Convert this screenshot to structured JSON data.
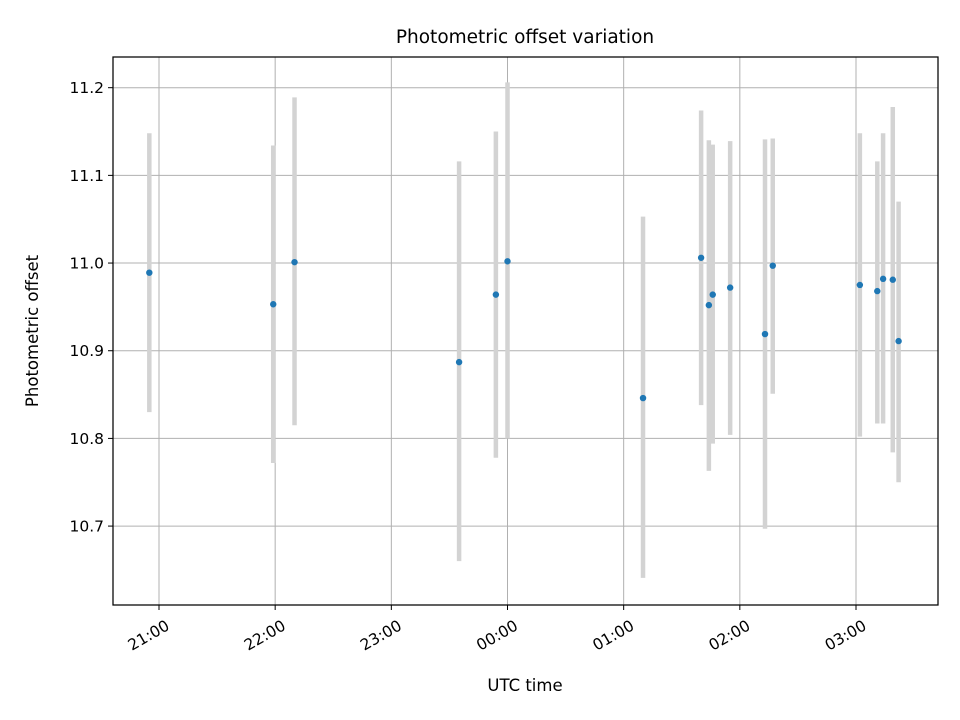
{
  "chart_data": {
    "type": "scatter",
    "title": "Photometric offset variation",
    "xlabel": "UTC time",
    "ylabel": "Photometric offset",
    "x_tick_labels": [
      "21:00",
      "22:00",
      "23:00",
      "00:00",
      "01:00",
      "02:00",
      "03:00"
    ],
    "y_tick_labels": [
      "10.7",
      "10.8",
      "10.9",
      "11.0",
      "11.1",
      "11.2"
    ],
    "ylim": [
      10.61,
      11.235
    ],
    "grid": true,
    "legend": "none",
    "colors": {
      "point": "#1f77b4",
      "errorbar": "#d3d3d3",
      "grid": "#b0b0b0"
    },
    "points": [
      {
        "time": "20:55",
        "y": 10.989,
        "ylow": 10.83,
        "yhigh": 11.148
      },
      {
        "time": "21:59",
        "y": 10.953,
        "ylow": 10.772,
        "yhigh": 11.134
      },
      {
        "time": "22:10",
        "y": 11.001,
        "ylow": 10.815,
        "yhigh": 11.189
      },
      {
        "time": "23:35",
        "y": 10.887,
        "ylow": 10.66,
        "yhigh": 11.116
      },
      {
        "time": "23:54",
        "y": 10.964,
        "ylow": 10.778,
        "yhigh": 11.15
      },
      {
        "time": "00:00",
        "y": 11.002,
        "ylow": 10.8,
        "yhigh": 11.206
      },
      {
        "time": "01:10",
        "y": 10.846,
        "ylow": 10.641,
        "yhigh": 11.053
      },
      {
        "time": "01:40",
        "y": 11.006,
        "ylow": 10.838,
        "yhigh": 11.174
      },
      {
        "time": "01:44",
        "y": 10.952,
        "ylow": 10.763,
        "yhigh": 11.14
      },
      {
        "time": "01:46",
        "y": 10.964,
        "ylow": 10.794,
        "yhigh": 11.135
      },
      {
        "time": "01:55",
        "y": 10.972,
        "ylow": 10.804,
        "yhigh": 11.139
      },
      {
        "time": "02:13",
        "y": 10.919,
        "ylow": 10.697,
        "yhigh": 11.141
      },
      {
        "time": "02:17",
        "y": 10.997,
        "ylow": 10.851,
        "yhigh": 11.142
      },
      {
        "time": "03:02",
        "y": 10.975,
        "ylow": 10.802,
        "yhigh": 11.148
      },
      {
        "time": "03:11",
        "y": 10.968,
        "ylow": 10.817,
        "yhigh": 11.116
      },
      {
        "time": "03:14",
        "y": 10.982,
        "ylow": 10.817,
        "yhigh": 11.148
      },
      {
        "time": "03:19",
        "y": 10.981,
        "ylow": 10.784,
        "yhigh": 11.178
      },
      {
        "time": "03:22",
        "y": 10.911,
        "ylow": 10.75,
        "yhigh": 11.07
      }
    ]
  }
}
